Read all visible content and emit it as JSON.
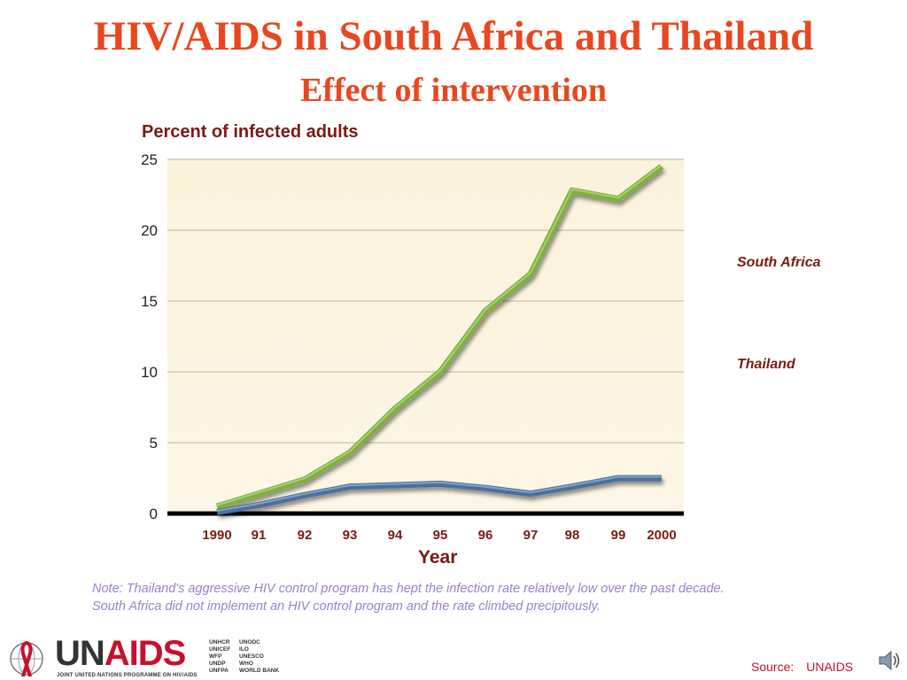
{
  "header": {
    "title": "HIV/AIDS in South Africa and Thailand",
    "subtitle": "Effect of intervention"
  },
  "chart_data": {
    "type": "line",
    "title": "HIV/AIDS in South Africa and Thailand",
    "subtitle": "Effect of intervention",
    "ylabel": "Percent of infected adults",
    "xlabel": "Year",
    "categories": [
      "1990",
      "91",
      "92",
      "93",
      "94",
      "95",
      "96",
      "97",
      "98",
      "99",
      "2000"
    ],
    "ylim": [
      0,
      25
    ],
    "yticks": [
      0,
      5,
      10,
      15,
      20,
      25
    ],
    "grid": true,
    "legend_position": "right",
    "series": [
      {
        "name": "South Africa",
        "color": "#7db23a",
        "values": [
          0.5,
          1.4,
          2.4,
          4.3,
          7.4,
          10.0,
          14.3,
          16.9,
          22.8,
          22.2,
          24.5
        ]
      },
      {
        "name": "Thailand",
        "color": "#4a6fa0",
        "values": [
          0.1,
          0.6,
          1.3,
          1.9,
          2.0,
          2.1,
          1.8,
          1.4,
          1.9,
          2.5,
          2.5
        ]
      }
    ]
  },
  "note": {
    "line1": "Note: Thailand's aggressive HIV control program has hept the infection rate relatively low over the past decade.",
    "line2": "South Africa did not implement an HIV control program and the rate climbed precipitously."
  },
  "logo": {
    "word_un": "UN",
    "word_aids": "AIDS",
    "tagline": "JOINT UNITED NATIONS PROGRAMME ON HIV/AIDS",
    "orgs_left": [
      "UNHCR",
      "UNICEF",
      "WFP",
      "UNDP",
      "UNFPA"
    ],
    "orgs_right": [
      "UNODC",
      "ILO",
      "UNESCO",
      "WHO",
      "WORLD BANK"
    ]
  },
  "source": {
    "label": "Source:",
    "value": "UNAIDS"
  },
  "icons": {
    "speaker": "speaker-icon",
    "ribbon": "red-ribbon-icon"
  }
}
